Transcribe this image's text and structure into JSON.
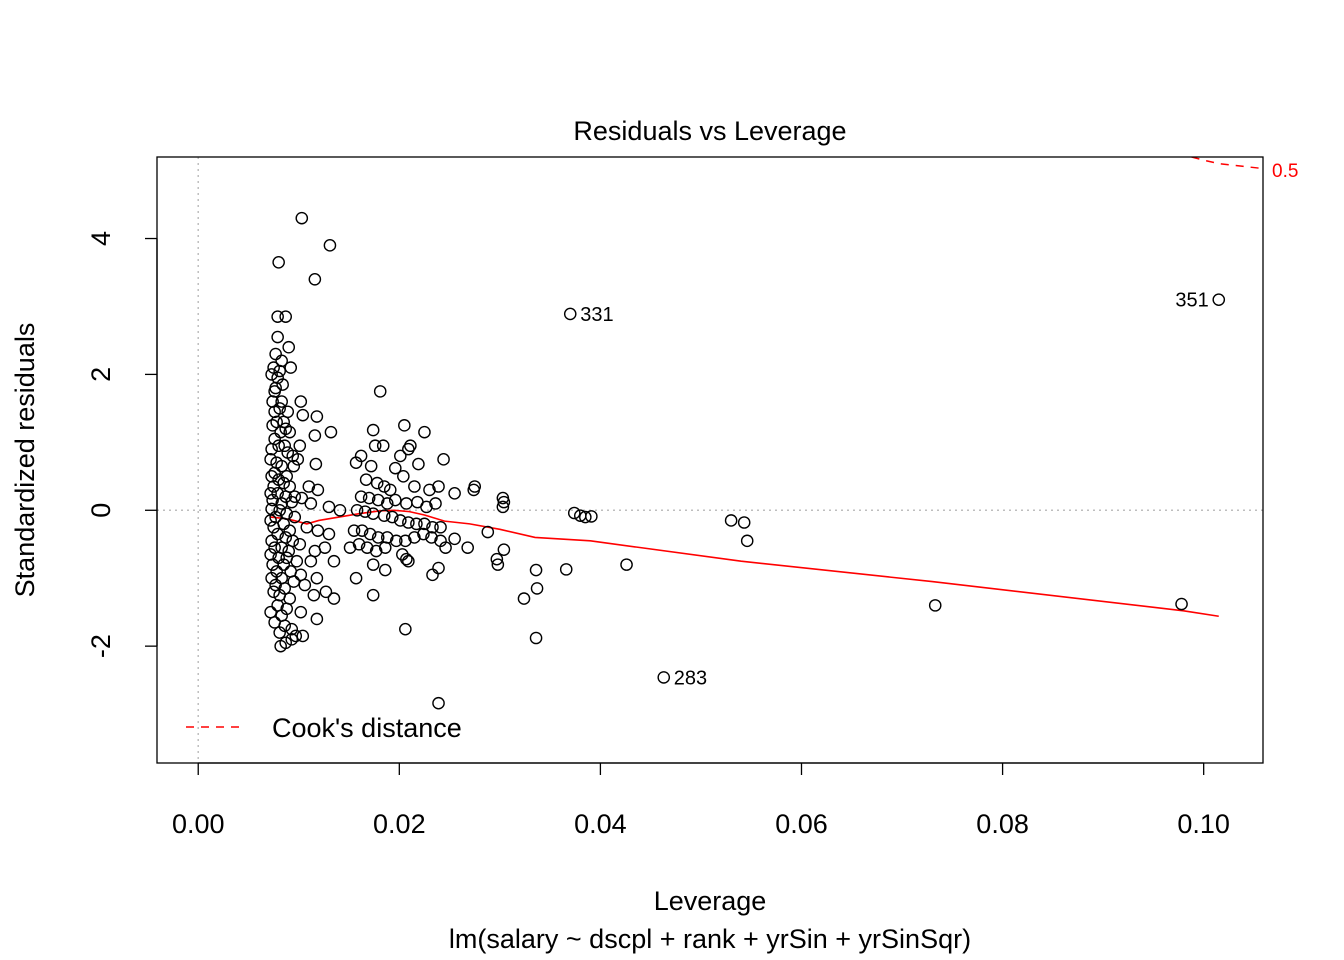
{
  "chart_data": {
    "type": "scatter",
    "title": "Residuals vs Leverage",
    "xlabel": "Leverage",
    "subtitle": "lm(salary ~ dscpl + rank + yrSin + yrSinSqr)",
    "ylabel": "Standardized residuals",
    "xlim": [
      -0.0041,
      0.1059
    ],
    "ylim": [
      -3.72,
      5.2
    ],
    "xticks": [
      0.0,
      0.02,
      0.04,
      0.06,
      0.08,
      0.1
    ],
    "xtick_labels": [
      "0.00",
      "0.02",
      "0.04",
      "0.06",
      "0.08",
      "0.10"
    ],
    "yticks": [
      -2,
      0,
      2,
      4
    ],
    "ytick_labels": [
      "-2",
      "0",
      "2",
      "4"
    ],
    "reference_lines": {
      "x": 0,
      "y": 0,
      "style": "dotted",
      "color": "#bebebe"
    },
    "colors": {
      "points": "#000000",
      "smooth": "#ff0000",
      "cooks": "#ff0000",
      "refline": "#bebebe"
    },
    "cooks_distance": {
      "label": "0.5",
      "points": [
        [
          0.0988,
          5.2
        ],
        [
          0.1001,
          5.15
        ],
        [
          0.1016,
          5.1
        ],
        [
          0.1059,
          5.03
        ]
      ]
    },
    "legend": {
      "label": "Cook's distance",
      "line_style": "dashed",
      "position": "bottom-left"
    },
    "smooth_line": [
      [
        0.0072,
        -0.1
      ],
      [
        0.0085,
        -0.12
      ],
      [
        0.0095,
        -0.15
      ],
      [
        0.0108,
        -0.2
      ],
      [
        0.012,
        -0.15
      ],
      [
        0.014,
        -0.1
      ],
      [
        0.016,
        -0.05
      ],
      [
        0.018,
        -0.01
      ],
      [
        0.0195,
        0.0
      ],
      [
        0.021,
        -0.02
      ],
      [
        0.0225,
        -0.07
      ],
      [
        0.0245,
        -0.16
      ],
      [
        0.027,
        -0.2
      ],
      [
        0.03,
        -0.28
      ],
      [
        0.0335,
        -0.4
      ],
      [
        0.039,
        -0.45
      ],
      [
        0.044,
        -0.55
      ],
      [
        0.054,
        -0.75
      ],
      [
        0.073,
        -1.05
      ],
      [
        0.098,
        -1.48
      ],
      [
        0.1015,
        -1.56
      ]
    ],
    "labeled_points": [
      {
        "label": "331",
        "x": 0.037,
        "y": 2.89,
        "side": "right"
      },
      {
        "label": "351",
        "x": 0.1015,
        "y": 3.1,
        "side": "left"
      },
      {
        "label": "283",
        "x": 0.0463,
        "y": -2.46,
        "side": "right"
      }
    ],
    "points": [
      [
        0.0103,
        4.3
      ],
      [
        0.0131,
        3.9
      ],
      [
        0.008,
        3.65
      ],
      [
        0.0116,
        3.4
      ],
      [
        0.0079,
        2.85
      ],
      [
        0.0087,
        2.85
      ],
      [
        0.0079,
        2.55
      ],
      [
        0.009,
        2.4
      ],
      [
        0.0077,
        2.3
      ],
      [
        0.0083,
        2.2
      ],
      [
        0.0075,
        2.1
      ],
      [
        0.0081,
        2.05
      ],
      [
        0.0092,
        2.1
      ],
      [
        0.0073,
        2.0
      ],
      [
        0.0079,
        1.95
      ],
      [
        0.0077,
        1.8
      ],
      [
        0.0084,
        1.85
      ],
      [
        0.0076,
        1.75
      ],
      [
        0.0074,
        1.6
      ],
      [
        0.0083,
        1.6
      ],
      [
        0.0081,
        1.5
      ],
      [
        0.0089,
        1.45
      ],
      [
        0.0102,
        1.6
      ],
      [
        0.0104,
        1.4
      ],
      [
        0.0076,
        1.45
      ],
      [
        0.0078,
        1.3
      ],
      [
        0.0085,
        1.3
      ],
      [
        0.0118,
        1.38
      ],
      [
        0.0074,
        1.25
      ],
      [
        0.0082,
        1.15
      ],
      [
        0.0087,
        1.2
      ],
      [
        0.0091,
        1.15
      ],
      [
        0.0116,
        1.1
      ],
      [
        0.0132,
        1.15
      ],
      [
        0.0076,
        1.05
      ],
      [
        0.008,
        0.95
      ],
      [
        0.0086,
        0.95
      ],
      [
        0.0101,
        0.95
      ],
      [
        0.0073,
        0.9
      ],
      [
        0.0089,
        0.85
      ],
      [
        0.0094,
        0.8
      ],
      [
        0.0099,
        0.75
      ],
      [
        0.0072,
        0.75
      ],
      [
        0.0078,
        0.7
      ],
      [
        0.0083,
        0.65
      ],
      [
        0.0095,
        0.65
      ],
      [
        0.0117,
        0.68
      ],
      [
        0.0076,
        0.55
      ],
      [
        0.0088,
        0.5
      ],
      [
        0.0073,
        0.5
      ],
      [
        0.008,
        0.45
      ],
      [
        0.0085,
        0.4
      ],
      [
        0.0075,
        0.35
      ],
      [
        0.0091,
        0.35
      ],
      [
        0.011,
        0.35
      ],
      [
        0.0119,
        0.3
      ],
      [
        0.0072,
        0.25
      ],
      [
        0.0079,
        0.25
      ],
      [
        0.0087,
        0.2
      ],
      [
        0.0096,
        0.2
      ],
      [
        0.0103,
        0.18
      ],
      [
        0.0074,
        0.15
      ],
      [
        0.0083,
        0.1
      ],
      [
        0.0093,
        0.12
      ],
      [
        0.0112,
        0.1
      ],
      [
        0.013,
        0.05
      ],
      [
        0.0141,
        0.0
      ],
      [
        0.0073,
        0.02
      ],
      [
        0.0081,
        0.0
      ],
      [
        0.0088,
        -0.05
      ],
      [
        0.0077,
        -0.1
      ],
      [
        0.0096,
        -0.1
      ],
      [
        0.0072,
        -0.15
      ],
      [
        0.0085,
        -0.2
      ],
      [
        0.0108,
        -0.25
      ],
      [
        0.0075,
        -0.25
      ],
      [
        0.0091,
        -0.3
      ],
      [
        0.0119,
        -0.3
      ],
      [
        0.013,
        -0.35
      ],
      [
        0.0079,
        -0.35
      ],
      [
        0.0087,
        -0.4
      ],
      [
        0.0073,
        -0.45
      ],
      [
        0.0094,
        -0.45
      ],
      [
        0.0101,
        -0.5
      ],
      [
        0.0076,
        -0.55
      ],
      [
        0.0083,
        -0.55
      ],
      [
        0.009,
        -0.6
      ],
      [
        0.0116,
        -0.6
      ],
      [
        0.0126,
        -0.55
      ],
      [
        0.0072,
        -0.65
      ],
      [
        0.008,
        -0.7
      ],
      [
        0.0088,
        -0.7
      ],
      [
        0.0098,
        -0.75
      ],
      [
        0.0074,
        -0.8
      ],
      [
        0.0085,
        -0.8
      ],
      [
        0.0112,
        -0.75
      ],
      [
        0.0135,
        -0.75
      ],
      [
        0.0078,
        -0.9
      ],
      [
        0.0092,
        -0.9
      ],
      [
        0.0102,
        -0.95
      ],
      [
        0.0073,
        -1.0
      ],
      [
        0.0083,
        -1.0
      ],
      [
        0.0095,
        -1.05
      ],
      [
        0.0118,
        -1.0
      ],
      [
        0.0077,
        -1.1
      ],
      [
        0.0086,
        -1.15
      ],
      [
        0.0106,
        -1.1
      ],
      [
        0.0127,
        -1.2
      ],
      [
        0.0075,
        -1.2
      ],
      [
        0.0081,
        -1.25
      ],
      [
        0.0091,
        -1.3
      ],
      [
        0.0115,
        -1.25
      ],
      [
        0.0135,
        -1.3
      ],
      [
        0.0079,
        -1.4
      ],
      [
        0.0088,
        -1.45
      ],
      [
        0.0102,
        -1.5
      ],
      [
        0.0072,
        -1.5
      ],
      [
        0.0083,
        -1.55
      ],
      [
        0.0118,
        -1.6
      ],
      [
        0.0076,
        -1.65
      ],
      [
        0.0086,
        -1.7
      ],
      [
        0.0093,
        -1.75
      ],
      [
        0.0081,
        -1.8
      ],
      [
        0.0097,
        -1.85
      ],
      [
        0.0104,
        -1.85
      ],
      [
        0.0087,
        -1.95
      ],
      [
        0.0082,
        -2.0
      ],
      [
        0.0093,
        -1.9
      ],
      [
        0.0181,
        1.75
      ],
      [
        0.0205,
        1.25
      ],
      [
        0.0225,
        1.15
      ],
      [
        0.0174,
        1.18
      ],
      [
        0.0176,
        0.95
      ],
      [
        0.0184,
        0.95
      ],
      [
        0.0209,
        0.9
      ],
      [
        0.0211,
        0.95
      ],
      [
        0.0201,
        0.8
      ],
      [
        0.0162,
        0.8
      ],
      [
        0.0157,
        0.7
      ],
      [
        0.0172,
        0.65
      ],
      [
        0.0196,
        0.62
      ],
      [
        0.0219,
        0.68
      ],
      [
        0.0244,
        0.75
      ],
      [
        0.0204,
        0.5
      ],
      [
        0.0167,
        0.45
      ],
      [
        0.0178,
        0.4
      ],
      [
        0.0185,
        0.35
      ],
      [
        0.0191,
        0.3
      ],
      [
        0.0215,
        0.35
      ],
      [
        0.023,
        0.3
      ],
      [
        0.0239,
        0.35
      ],
      [
        0.0255,
        0.25
      ],
      [
        0.0274,
        0.3
      ],
      [
        0.0275,
        0.35
      ],
      [
        0.0303,
        0.18
      ],
      [
        0.0304,
        0.12
      ],
      [
        0.0303,
        0.05
      ],
      [
        0.0162,
        0.2
      ],
      [
        0.017,
        0.18
      ],
      [
        0.0179,
        0.15
      ],
      [
        0.0188,
        0.1
      ],
      [
        0.0196,
        0.15
      ],
      [
        0.0207,
        0.1
      ],
      [
        0.0218,
        0.12
      ],
      [
        0.0227,
        0.05
      ],
      [
        0.0236,
        0.1
      ],
      [
        0.0158,
        0.0
      ],
      [
        0.0166,
        -0.02
      ],
      [
        0.0174,
        -0.05
      ],
      [
        0.0185,
        -0.08
      ],
      [
        0.0193,
        -0.1
      ],
      [
        0.0201,
        -0.15
      ],
      [
        0.0209,
        -0.18
      ],
      [
        0.0217,
        -0.2
      ],
      [
        0.0225,
        -0.2
      ],
      [
        0.0233,
        -0.25
      ],
      [
        0.0241,
        -0.25
      ],
      [
        0.0155,
        -0.3
      ],
      [
        0.0163,
        -0.3
      ],
      [
        0.0171,
        -0.35
      ],
      [
        0.0179,
        -0.4
      ],
      [
        0.0188,
        -0.4
      ],
      [
        0.0197,
        -0.45
      ],
      [
        0.0206,
        -0.45
      ],
      [
        0.0215,
        -0.4
      ],
      [
        0.0224,
        -0.35
      ],
      [
        0.0232,
        -0.4
      ],
      [
        0.0241,
        -0.45
      ],
      [
        0.0255,
        -0.42
      ],
      [
        0.0288,
        -0.32
      ],
      [
        0.0151,
        -0.55
      ],
      [
        0.016,
        -0.5
      ],
      [
        0.0168,
        -0.55
      ],
      [
        0.0177,
        -0.6
      ],
      [
        0.0186,
        -0.55
      ],
      [
        0.0203,
        -0.65
      ],
      [
        0.0207,
        -0.72
      ],
      [
        0.0209,
        -0.75
      ],
      [
        0.0246,
        -0.55
      ],
      [
        0.0268,
        -0.55
      ],
      [
        0.0297,
        -0.72
      ],
      [
        0.0298,
        -0.8
      ],
      [
        0.0304,
        -0.58
      ],
      [
        0.0239,
        -0.85
      ],
      [
        0.0233,
        -0.95
      ],
      [
        0.0174,
        -0.8
      ],
      [
        0.0186,
        -0.88
      ],
      [
        0.0157,
        -1.0
      ],
      [
        0.0174,
        -1.25
      ],
      [
        0.0324,
        -1.3
      ],
      [
        0.0337,
        -1.15
      ],
      [
        0.0336,
        -0.88
      ],
      [
        0.0336,
        -1.88
      ],
      [
        0.0206,
        -1.75
      ],
      [
        0.0239,
        -2.84
      ],
      [
        0.0366,
        -0.87
      ],
      [
        0.0426,
        -0.8
      ],
      [
        0.0374,
        -0.04
      ],
      [
        0.038,
        -0.08
      ],
      [
        0.0385,
        -0.1
      ],
      [
        0.0391,
        -0.09
      ],
      [
        0.053,
        -0.15
      ],
      [
        0.0543,
        -0.18
      ],
      [
        0.0546,
        -0.45
      ],
      [
        0.0733,
        -1.4
      ],
      [
        0.0978,
        -1.38
      ],
      [
        0.037,
        2.89
      ],
      [
        0.1015,
        3.1
      ],
      [
        0.0463,
        -2.46
      ]
    ]
  }
}
